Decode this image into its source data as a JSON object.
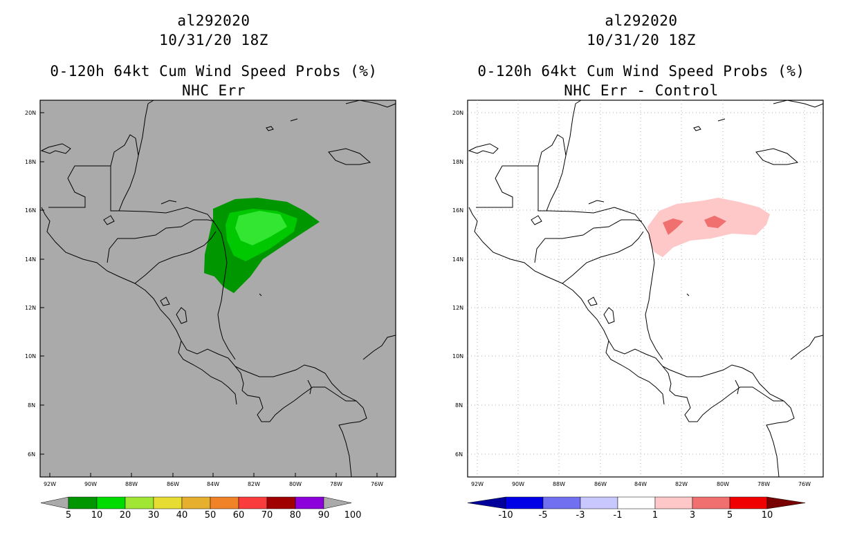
{
  "panels": [
    {
      "id": "left",
      "storm": "al292020",
      "datetime": "10/31/20 18Z",
      "product": "0-120h 64kt Cum Wind Speed Probs (%)",
      "subtitle": "NHC Err",
      "background": "#aaaaaa",
      "colorbar": {
        "colors": [
          "#009600",
          "#00dc00",
          "#a0e632",
          "#e6dc32",
          "#e6af2d",
          "#f08228",
          "#fa3c3c",
          "#a00000",
          "#8c00dc"
        ],
        "labels": [
          "5",
          "10",
          "20",
          "30",
          "40",
          "50",
          "60",
          "70",
          "80",
          "90",
          "100"
        ],
        "end_color": "#aaaaaa"
      }
    },
    {
      "id": "right",
      "storm": "al292020",
      "datetime": "10/31/20 18Z",
      "product": "0-120h 64kt Cum Wind Speed Probs (%)",
      "subtitle": "NHC Err - Control",
      "background": "#ffffff",
      "colorbar": {
        "colors": [
          "#0000e6",
          "#7070f0",
          "#c8c8ff",
          "#ffffff",
          "#ffc8c8",
          "#f07070",
          "#f00000"
        ],
        "labels": [
          "-10",
          "-5",
          "-3",
          "-1",
          "1",
          "3",
          "5",
          "10"
        ],
        "left_end_color": "#00009b",
        "right_end_color": "#780000"
      }
    }
  ],
  "axes": {
    "lat_labels": [
      "20N",
      "18N",
      "16N",
      "14N",
      "12N",
      "10N",
      "8N",
      "6N"
    ],
    "lon_labels": [
      "92W",
      "90W",
      "88W",
      "86W",
      "84W",
      "82W",
      "80W",
      "78W",
      "76W"
    ]
  }
}
